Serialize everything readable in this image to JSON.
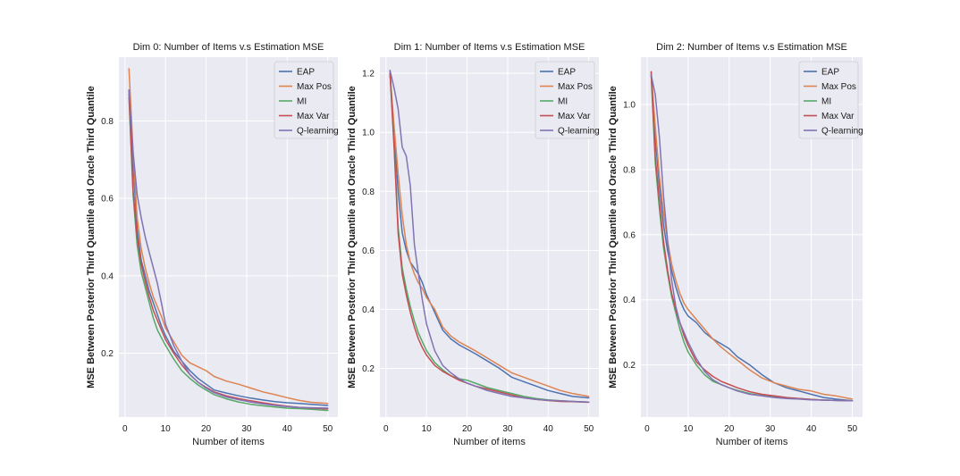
{
  "chart_data": [
    {
      "type": "line",
      "title": "Dim 0: Number of Items v.s Estimation MSE",
      "xlabel": "Number of items",
      "ylabel": "MSE Between Posterior Third Quantile and Oracle Third Quantile",
      "xlim": [
        -1.5,
        52.5
      ],
      "ylim": [
        0.035,
        0.965
      ],
      "xticks": [
        0,
        10,
        20,
        30,
        40,
        50
      ],
      "yticks": [
        0.2,
        0.4,
        0.6,
        0.8
      ],
      "xtick_labels": [
        "0",
        "10",
        "20",
        "30",
        "40",
        "50"
      ],
      "ytick_labels": [
        "0.2",
        "0.4",
        "0.6",
        "0.8"
      ],
      "legend_position": "top-right",
      "x": [
        1,
        2,
        3,
        4,
        5,
        6,
        7,
        8,
        9,
        10,
        12,
        14,
        16,
        18,
        20,
        22,
        25,
        28,
        31,
        34,
        37,
        40,
        43,
        46,
        50
      ],
      "series": [
        {
          "name": "EAP",
          "values": [
            0.88,
            0.69,
            0.52,
            0.44,
            0.4,
            0.36,
            0.33,
            0.3,
            0.27,
            0.245,
            0.205,
            0.18,
            0.155,
            0.135,
            0.12,
            0.105,
            0.097,
            0.09,
            0.084,
            0.079,
            0.075,
            0.072,
            0.07,
            0.068,
            0.065
          ]
        },
        {
          "name": "Max Pos",
          "values": [
            0.935,
            0.72,
            0.55,
            0.47,
            0.42,
            0.38,
            0.345,
            0.32,
            0.295,
            0.265,
            0.23,
            0.195,
            0.175,
            0.165,
            0.155,
            0.14,
            0.128,
            0.12,
            0.11,
            0.1,
            0.093,
            0.085,
            0.078,
            0.073,
            0.07
          ]
        },
        {
          "name": "MI",
          "values": [
            0.86,
            0.61,
            0.48,
            0.41,
            0.37,
            0.33,
            0.29,
            0.26,
            0.24,
            0.22,
            0.185,
            0.155,
            0.135,
            0.118,
            0.105,
            0.093,
            0.082,
            0.074,
            0.068,
            0.064,
            0.061,
            0.058,
            0.057,
            0.055,
            0.052
          ]
        },
        {
          "name": "Max Var",
          "values": [
            0.87,
            0.62,
            0.5,
            0.43,
            0.385,
            0.345,
            0.31,
            0.285,
            0.26,
            0.235,
            0.2,
            0.17,
            0.145,
            0.125,
            0.112,
            0.1,
            0.09,
            0.083,
            0.077,
            0.072,
            0.067,
            0.063,
            0.06,
            0.058,
            0.056
          ]
        },
        {
          "name": "Q-learning",
          "values": [
            0.88,
            0.72,
            0.61,
            0.55,
            0.5,
            0.46,
            0.42,
            0.38,
            0.33,
            0.275,
            0.22,
            0.18,
            0.145,
            0.125,
            0.11,
            0.098,
            0.087,
            0.08,
            0.074,
            0.069,
            0.065,
            0.062,
            0.06,
            0.059,
            0.058
          ]
        }
      ]
    },
    {
      "type": "line",
      "title": "Dim 1: Number of Items v.s Estimation MSE",
      "xlabel": "Number of items",
      "ylabel": "MSE Between Posterior Third Quantile and Oracle Third Quantile",
      "xlim": [
        -1.5,
        52.5
      ],
      "ylim": [
        0.035,
        1.255
      ],
      "xticks": [
        0,
        10,
        20,
        30,
        40,
        50
      ],
      "yticks": [
        0.2,
        0.4,
        0.6,
        0.8,
        1.0,
        1.2
      ],
      "xtick_labels": [
        "0",
        "10",
        "20",
        "30",
        "40",
        "50"
      ],
      "ytick_labels": [
        "0.2",
        "0.4",
        "0.6",
        "0.8",
        "1.0",
        "1.2"
      ],
      "legend_position": "top-right",
      "x": [
        1,
        2,
        3,
        4,
        5,
        6,
        7,
        8,
        9,
        10,
        12,
        14,
        16,
        18,
        20,
        22,
        25,
        28,
        31,
        34,
        37,
        40,
        43,
        46,
        50
      ],
      "series": [
        {
          "name": "EAP",
          "values": [
            1.2,
            1.0,
            0.8,
            0.66,
            0.6,
            0.56,
            0.54,
            0.52,
            0.49,
            0.45,
            0.39,
            0.33,
            0.3,
            0.28,
            0.265,
            0.25,
            0.225,
            0.2,
            0.17,
            0.155,
            0.14,
            0.125,
            0.115,
            0.105,
            0.1
          ]
        },
        {
          "name": "Max Pos",
          "values": [
            1.2,
            1.02,
            0.86,
            0.72,
            0.62,
            0.56,
            0.52,
            0.49,
            0.47,
            0.44,
            0.4,
            0.34,
            0.31,
            0.29,
            0.275,
            0.26,
            0.235,
            0.21,
            0.185,
            0.17,
            0.155,
            0.14,
            0.125,
            0.115,
            0.105
          ]
        },
        {
          "name": "MI",
          "values": [
            1.21,
            0.96,
            0.68,
            0.54,
            0.47,
            0.41,
            0.36,
            0.32,
            0.29,
            0.26,
            0.22,
            0.195,
            0.175,
            0.165,
            0.16,
            0.15,
            0.135,
            0.125,
            0.115,
            0.105,
            0.098,
            0.093,
            0.09,
            0.088,
            0.086
          ]
        },
        {
          "name": "Max Var",
          "values": [
            1.2,
            0.95,
            0.66,
            0.52,
            0.45,
            0.39,
            0.34,
            0.3,
            0.27,
            0.245,
            0.21,
            0.19,
            0.175,
            0.16,
            0.15,
            0.14,
            0.13,
            0.12,
            0.11,
            0.1,
            0.095,
            0.091,
            0.088,
            0.087,
            0.085
          ]
        },
        {
          "name": "Q-learning",
          "values": [
            1.21,
            1.15,
            1.08,
            0.95,
            0.92,
            0.82,
            0.62,
            0.52,
            0.43,
            0.35,
            0.26,
            0.21,
            0.185,
            0.165,
            0.15,
            0.14,
            0.125,
            0.115,
            0.105,
            0.1,
            0.095,
            0.092,
            0.09,
            0.088,
            0.086
          ]
        }
      ]
    },
    {
      "type": "line",
      "title": "Dim 2: Number of Items v.s Estimation MSE",
      "xlabel": "Number of items",
      "ylabel": "MSE Between Posterior Third Quantile and Oracle Third Quantile",
      "xlim": [
        -1.5,
        52.5
      ],
      "ylim": [
        0.04,
        1.145
      ],
      "xticks": [
        0,
        10,
        20,
        30,
        40,
        50
      ],
      "yticks": [
        0.2,
        0.4,
        0.6,
        0.8,
        1.0
      ],
      "xtick_labels": [
        "0",
        "10",
        "20",
        "30",
        "40",
        "50"
      ],
      "ytick_labels": [
        "0.2",
        "0.4",
        "0.6",
        "0.8",
        "1.0"
      ],
      "legend_position": "top-right",
      "x": [
        1,
        2,
        3,
        4,
        5,
        6,
        7,
        8,
        9,
        10,
        12,
        14,
        16,
        18,
        20,
        22,
        25,
        28,
        31,
        34,
        37,
        40,
        43,
        46,
        50
      ],
      "series": [
        {
          "name": "EAP",
          "values": [
            1.09,
            0.9,
            0.75,
            0.63,
            0.55,
            0.49,
            0.44,
            0.4,
            0.37,
            0.35,
            0.33,
            0.3,
            0.28,
            0.265,
            0.25,
            0.225,
            0.2,
            0.17,
            0.145,
            0.13,
            0.12,
            0.11,
            0.1,
            0.095,
            0.09
          ]
        },
        {
          "name": "Max Pos",
          "values": [
            1.1,
            0.93,
            0.78,
            0.67,
            0.58,
            0.51,
            0.46,
            0.42,
            0.39,
            0.37,
            0.34,
            0.31,
            0.28,
            0.255,
            0.235,
            0.215,
            0.185,
            0.16,
            0.145,
            0.135,
            0.125,
            0.12,
            0.11,
            0.105,
            0.095
          ]
        },
        {
          "name": "MI",
          "values": [
            1.09,
            0.82,
            0.68,
            0.56,
            0.48,
            0.41,
            0.36,
            0.31,
            0.27,
            0.24,
            0.2,
            0.17,
            0.15,
            0.14,
            0.13,
            0.122,
            0.112,
            0.106,
            0.102,
            0.099,
            0.097,
            0.094,
            0.092,
            0.091,
            0.09
          ]
        },
        {
          "name": "Max Var",
          "values": [
            1.1,
            0.84,
            0.7,
            0.58,
            0.49,
            0.42,
            0.37,
            0.33,
            0.29,
            0.26,
            0.21,
            0.185,
            0.165,
            0.15,
            0.14,
            0.13,
            0.118,
            0.11,
            0.105,
            0.1,
            0.097,
            0.094,
            0.092,
            0.091,
            0.09
          ]
        },
        {
          "name": "Q-learning",
          "values": [
            1.09,
            1.03,
            0.9,
            0.72,
            0.58,
            0.46,
            0.38,
            0.33,
            0.3,
            0.27,
            0.22,
            0.18,
            0.155,
            0.14,
            0.13,
            0.12,
            0.11,
            0.105,
            0.1,
            0.097,
            0.095,
            0.093,
            0.092,
            0.091,
            0.09
          ]
        }
      ]
    }
  ],
  "colors": {
    "EAP": "#4c72b0",
    "Max Pos": "#dd8452",
    "MI": "#55a868",
    "Max Var": "#c44e52",
    "Q-learning": "#8172b3"
  }
}
